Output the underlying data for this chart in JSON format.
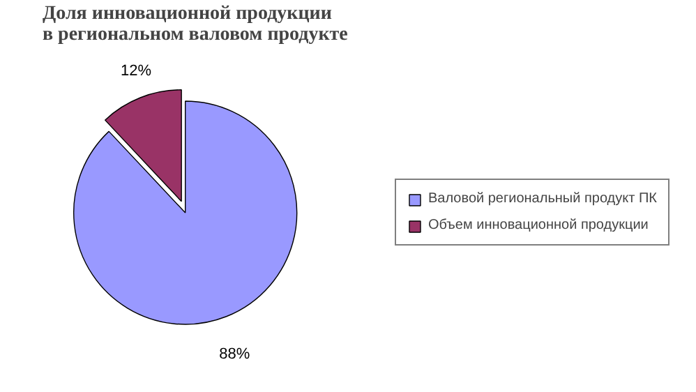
{
  "chart_data": {
    "type": "pie",
    "title": "Доля инновационной продукции\nв региональном валовом продукте",
    "categories": [
      "Валовой региональный продукт ПК",
      "Объем инновационной продукции"
    ],
    "values": [
      88,
      12
    ],
    "colors": [
      "#9999ff",
      "#993366"
    ],
    "value_labels": [
      "88%",
      "12%"
    ],
    "legend": "right"
  }
}
